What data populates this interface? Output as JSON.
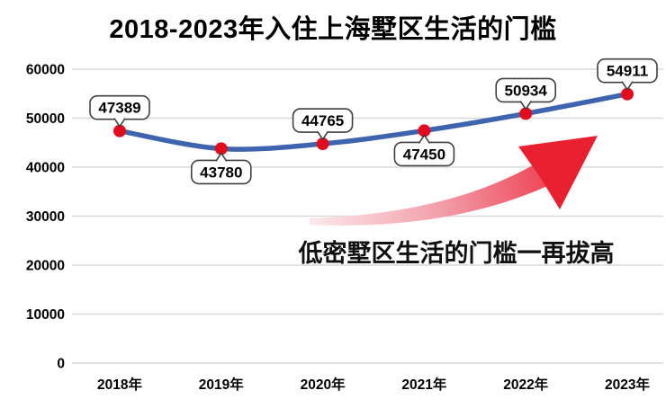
{
  "chart_data": {
    "type": "line",
    "title": "2018-2023年入住上海墅区生活的门槛",
    "categories": [
      "2018年",
      "2019年",
      "2020年",
      "2021年",
      "2022年",
      "2023年"
    ],
    "series": [
      {
        "name": "入住上海墅区生活的门槛",
        "values": [
          47389,
          43780,
          44765,
          47450,
          50934,
          54911
        ]
      }
    ],
    "data_labels": [
      "47389",
      "43780",
      "44765",
      "47450",
      "50934",
      "54911"
    ],
    "label_positions": [
      "above",
      "below",
      "above",
      "below",
      "above",
      "above"
    ],
    "y_ticks": [
      0,
      10000,
      20000,
      30000,
      40000,
      50000,
      60000
    ],
    "ylim": [
      0,
      60000
    ],
    "grid": true,
    "legend": "none",
    "annotation": "低密墅区生活的门槛一再拔高",
    "colors": {
      "line": "#3E64AE",
      "marker": "#E30B1E",
      "callout_fill": "#FFFFFF",
      "callout_border": "#3F3F3F",
      "grid": "#D9D9D9",
      "arrow_start": "#FCE9EB",
      "arrow_mid": "#F29DA8",
      "arrow_end": "#EC1C2E",
      "arrow_head": "#E9202F",
      "title_color": "#000000",
      "axis_text": "#000000",
      "annotation_color": "#111111"
    }
  }
}
